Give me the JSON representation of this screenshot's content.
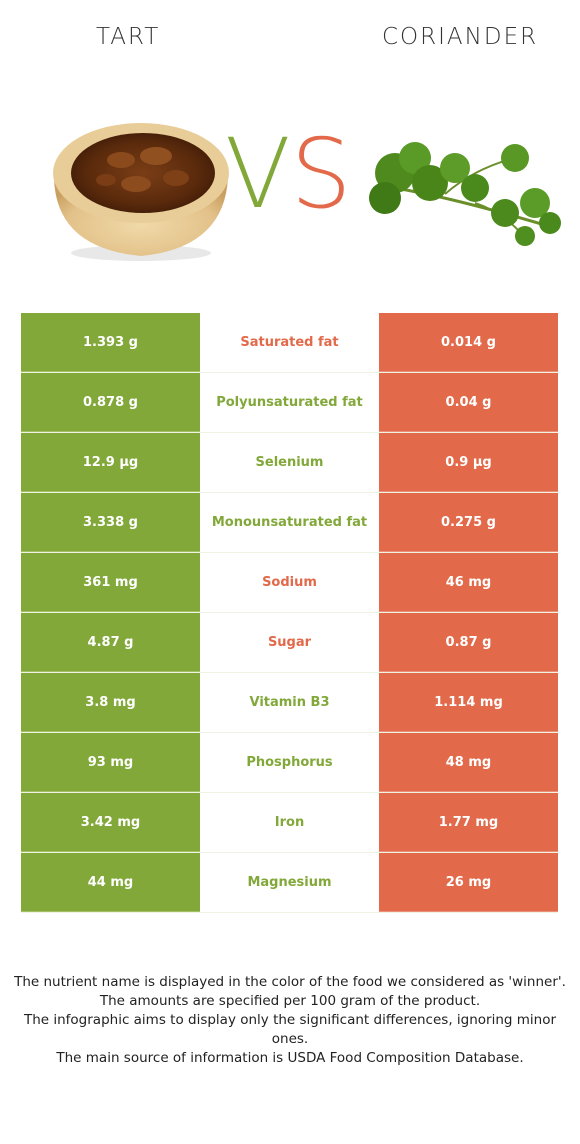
{
  "header": {
    "left_food": "TART",
    "right_food": "CORIANDER",
    "vs_v": "V",
    "vs_s": "S"
  },
  "colors": {
    "winner_left": "#82a83a",
    "winner_right": "#e26a4a"
  },
  "rows": [
    {
      "left": "1.393 g",
      "nutrient": "Saturated fat",
      "right": "0.014 g",
      "winner": "right"
    },
    {
      "left": "0.878 g",
      "nutrient": "Polyunsaturated fat",
      "right": "0.04 g",
      "winner": "left"
    },
    {
      "left": "12.9 µg",
      "nutrient": "Selenium",
      "right": "0.9 µg",
      "winner": "left"
    },
    {
      "left": "3.338 g",
      "nutrient": "Monounsaturated fat",
      "right": "0.275 g",
      "winner": "left"
    },
    {
      "left": "361 mg",
      "nutrient": "Sodium",
      "right": "46 mg",
      "winner": "right"
    },
    {
      "left": "4.87 g",
      "nutrient": "Sugar",
      "right": "0.87 g",
      "winner": "right"
    },
    {
      "left": "3.8 mg",
      "nutrient": "Vitamin B3",
      "right": "1.114 mg",
      "winner": "left"
    },
    {
      "left": "93 mg",
      "nutrient": "Phosphorus",
      "right": "48 mg",
      "winner": "left"
    },
    {
      "left": "3.42 mg",
      "nutrient": "Iron",
      "right": "1.77 mg",
      "winner": "left"
    },
    {
      "left": "44 mg",
      "nutrient": "Magnesium",
      "right": "26 mg",
      "winner": "left"
    }
  ],
  "footer": {
    "line1": "The nutrient name is displayed in the color of the food we considered as 'winner'.",
    "line2": "The amounts are specified per 100 gram of the product.",
    "line3": "The infographic aims to display only the significant differences, ignoring minor ones.",
    "line4": "The main source of information is USDA Food Composition Database."
  }
}
